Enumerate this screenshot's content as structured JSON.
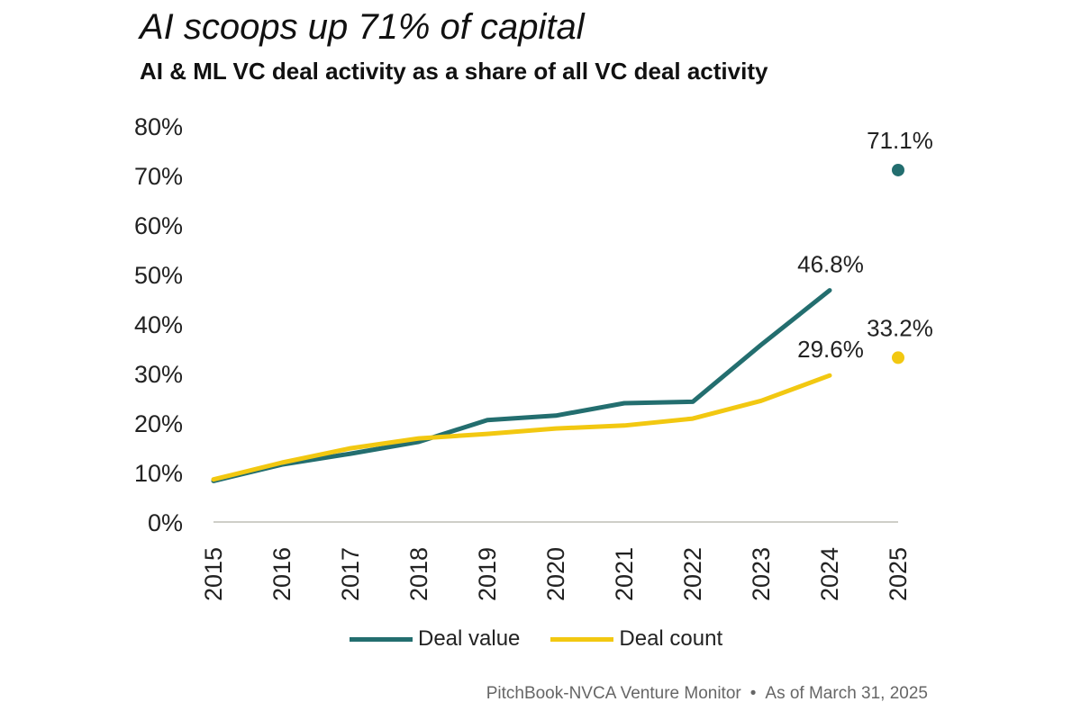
{
  "title": "AI scoops up 71% of capital",
  "subtitle": "AI & ML VC deal activity as a share of all VC deal activity",
  "chart_data": {
    "type": "line",
    "title": "AI scoops up 71% of capital",
    "subtitle": "AI & ML VC deal activity as a share of all VC deal activity",
    "categories": [
      "2015",
      "2016",
      "2017",
      "2018",
      "2019",
      "2020",
      "2021",
      "2022",
      "2023",
      "2024",
      "2025"
    ],
    "ylim": [
      0,
      80
    ],
    "yticks": [
      0,
      10,
      20,
      30,
      40,
      50,
      60,
      70,
      80
    ],
    "ytick_labels": [
      "0%",
      "10%",
      "20%",
      "30%",
      "40%",
      "50%",
      "60%",
      "70%",
      "80%"
    ],
    "xlabel": "",
    "ylabel": "",
    "grid": false,
    "legend_position": "bottom-center",
    "series": [
      {
        "name": "Deal value",
        "color": "#236e6f",
        "values": [
          8.3,
          11.6,
          13.8,
          16.2,
          20.6,
          21.5,
          24.0,
          24.3,
          35.8,
          46.8,
          null
        ],
        "highlight": {
          "category": "2025",
          "value": 71.1,
          "label": "71.1%"
        },
        "end_label": {
          "category": "2024",
          "value": 46.8,
          "label": "46.8%"
        }
      },
      {
        "name": "Deal count",
        "color": "#f2c811",
        "values": [
          8.6,
          12.0,
          14.9,
          16.9,
          17.8,
          18.9,
          19.5,
          20.9,
          24.5,
          29.6,
          null
        ],
        "highlight": {
          "category": "2025",
          "value": 33.2,
          "label": "33.2%"
        },
        "end_label": {
          "category": "2024",
          "value": 29.6,
          "label": "29.6%"
        }
      }
    ]
  },
  "legend": {
    "items": [
      {
        "label": "Deal value",
        "color": "#236e6f"
      },
      {
        "label": "Deal count",
        "color": "#f2c811"
      }
    ]
  },
  "source": {
    "left": "PitchBook-NVCA Venture Monitor",
    "separator": "•",
    "right": "As of March 31, 2025"
  }
}
